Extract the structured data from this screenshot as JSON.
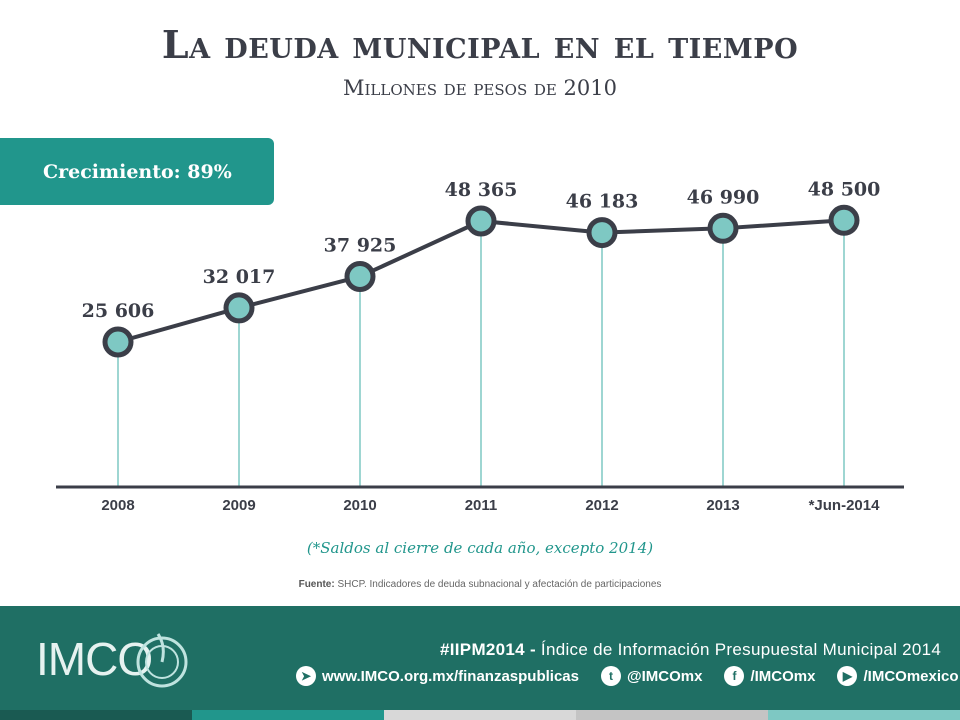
{
  "title": "La deuda municipal en el tiempo",
  "subtitle": "Millones de pesos de 2010",
  "growth": "Crecimiento: 89%",
  "chart_data": {
    "type": "line",
    "categories": [
      "2008",
      "2009",
      "2010",
      "2011",
      "2012",
      "2013",
      "*Jun-2014"
    ],
    "values": [
      25606,
      32017,
      37925,
      48365,
      46183,
      46990,
      48500
    ],
    "value_labels": [
      "25 606",
      "32 017",
      "37 925",
      "48 365",
      "46 183",
      "46 990",
      "48 500"
    ],
    "title": "La deuda municipal en el tiempo",
    "xlabel": "",
    "ylabel": "",
    "grid": false,
    "colors": {
      "line": "#3b3e48",
      "marker": "#7ec8c3",
      "marker_border": "#3b3e48",
      "drop": "#7ec8c3"
    }
  },
  "note": "(*Saldos al cierre de cada año, excepto 2014)",
  "source": {
    "label": "Fuente:",
    "text": " SHCP. Indicadores de deuda subnacional y afectación de participaciones"
  },
  "footer": {
    "logo": "IMCO",
    "hashtag": "#IIPM2014 -",
    "tagline": " Índice de Información Presupuestal Municipal 2014",
    "links": [
      {
        "icon": "send-icon",
        "text": "www.IMCO.org.mx/finanzaspublicas"
      },
      {
        "icon": "twitter-icon",
        "text": "@IMCOmx"
      },
      {
        "icon": "facebook-icon",
        "text": "/IMCOmx"
      },
      {
        "icon": "youtube-icon",
        "text": "/IMCOmexico"
      }
    ]
  },
  "stripe_colors": [
    "#1a5a52",
    "#21968c",
    "#d8d8d8",
    "#c4c4c4",
    "#7ec8c3"
  ]
}
